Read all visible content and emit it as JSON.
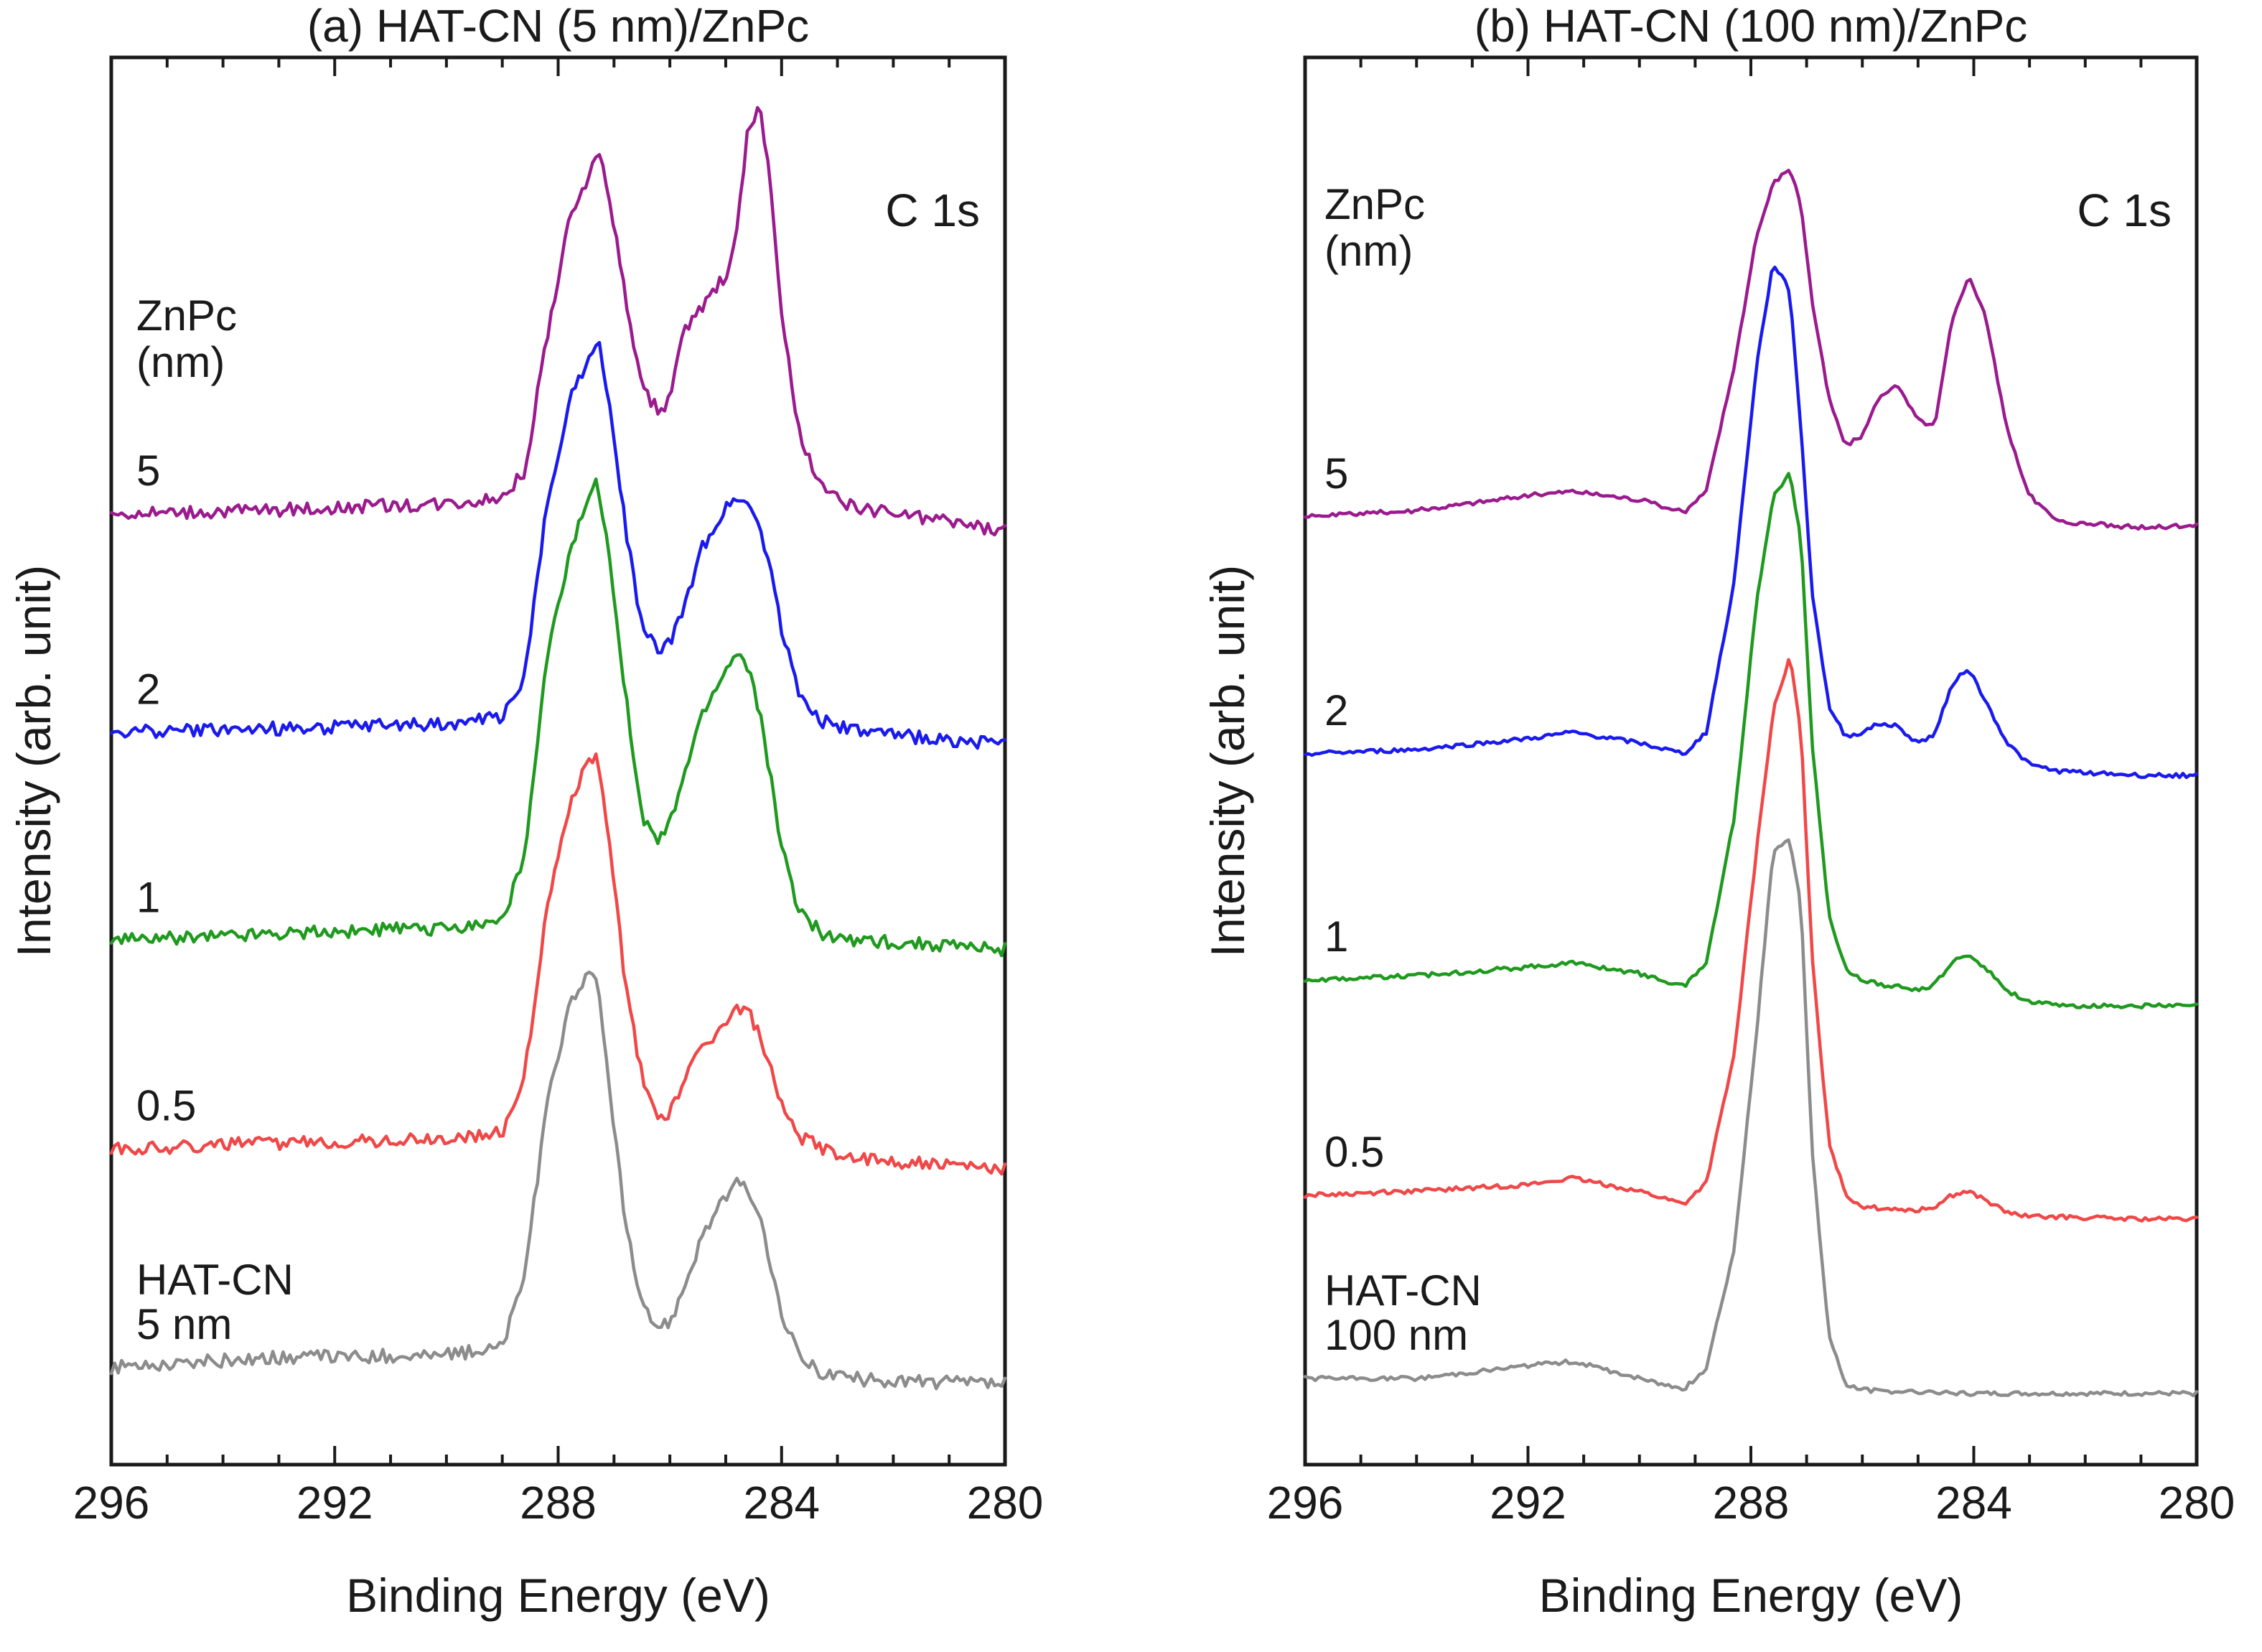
{
  "chart_data": [
    {
      "type": "line",
      "title": "(a) HAT-CN (5 nm)/ZnPc",
      "xlabel": "Binding Energy (eV)",
      "ylabel": "Intensity (arb. unit)",
      "xlim": [
        296,
        280
      ],
      "xticks": [
        296,
        292,
        288,
        284,
        280
      ],
      "xtick_labels": [
        "296",
        "292",
        "288",
        "284",
        "280"
      ],
      "y_ticks_shown": false,
      "corner_label": "C 1s",
      "legend_header": [
        "ZnPc",
        "(nm)"
      ],
      "series": [
        {
          "name": "5",
          "label_lines": [
            "5"
          ],
          "color": "#9b1b8e",
          "offset": 4.1,
          "x": [
            296,
            293,
            290,
            289,
            288.6,
            288.2,
            287.8,
            287.5,
            287.3,
            287.1,
            286.8,
            286.5,
            286.2,
            286.0,
            285.8,
            285.4,
            285.0,
            284.8,
            284.6,
            284.4,
            284.2,
            284.0,
            283.7,
            283.3,
            283.0,
            282.5,
            280
          ],
          "values": [
            0.0,
            0.02,
            0.05,
            0.08,
            0.2,
            0.85,
            1.4,
            1.6,
            1.75,
            1.55,
            1.05,
            0.6,
            0.5,
            0.55,
            0.85,
            1.0,
            1.15,
            1.35,
            1.85,
            1.95,
            1.6,
            0.95,
            0.4,
            0.12,
            0.07,
            0.02,
            -0.08
          ]
        },
        {
          "name": "2",
          "label_lines": [
            "2"
          ],
          "color": "#1a1aee",
          "offset": 3.05,
          "x": [
            296,
            293,
            290,
            289,
            288.6,
            288.2,
            287.8,
            287.5,
            287.3,
            287.1,
            286.8,
            286.5,
            286.2,
            286.0,
            285.8,
            285.4,
            285.0,
            284.8,
            284.6,
            284.4,
            284.2,
            284.0,
            283.7,
            283.3,
            283.0,
            282.5,
            280
          ],
          "values": [
            0.0,
            0.02,
            0.04,
            0.08,
            0.25,
            1.1,
            1.6,
            1.78,
            1.9,
            1.6,
            1.0,
            0.5,
            0.4,
            0.43,
            0.55,
            0.9,
            1.08,
            1.14,
            1.1,
            1.0,
            0.8,
            0.5,
            0.2,
            0.06,
            0.03,
            0.0,
            -0.06
          ]
        },
        {
          "name": "1",
          "label_lines": [
            "1"
          ],
          "color": "#1f9a1f",
          "offset": 2.05,
          "x": [
            296,
            293,
            290,
            289,
            288.6,
            288.2,
            287.8,
            287.5,
            287.3,
            287.1,
            286.8,
            286.5,
            286.2,
            286.0,
            285.8,
            285.4,
            285.0,
            284.8,
            284.6,
            284.4,
            284.2,
            284.0,
            283.7,
            283.3,
            283.0,
            282.5,
            280
          ],
          "values": [
            0.0,
            0.04,
            0.06,
            0.1,
            0.4,
            1.35,
            1.85,
            2.1,
            2.2,
            1.9,
            1.2,
            0.58,
            0.48,
            0.55,
            0.75,
            1.1,
            1.3,
            1.38,
            1.32,
            1.1,
            0.8,
            0.45,
            0.15,
            0.04,
            0.02,
            0.0,
            -0.04
          ]
        },
        {
          "name": "0.5",
          "label_lines": [
            "0.5"
          ],
          "color": "#f04848",
          "offset": 1.05,
          "x": [
            296,
            293,
            290,
            289,
            288.6,
            288.2,
            287.8,
            287.5,
            287.3,
            287.1,
            286.8,
            286.5,
            286.2,
            286.0,
            285.8,
            285.4,
            285.0,
            284.8,
            284.6,
            284.4,
            284.2,
            284.0,
            283.7,
            283.3,
            283.0,
            282.5,
            280
          ],
          "values": [
            0.0,
            0.03,
            0.05,
            0.08,
            0.35,
            1.15,
            1.65,
            1.85,
            1.88,
            1.5,
            0.8,
            0.35,
            0.15,
            0.18,
            0.3,
            0.5,
            0.6,
            0.68,
            0.66,
            0.55,
            0.38,
            0.2,
            0.06,
            0.01,
            -0.02,
            -0.05,
            -0.1
          ]
        },
        {
          "name": "HAT-CN 5 nm",
          "label_lines": [
            "HAT-CN",
            "5 nm"
          ],
          "color": "#8c8c8c",
          "offset": 0.0,
          "x": [
            296,
            293,
            290,
            289,
            288.6,
            288.2,
            287.8,
            287.5,
            287.3,
            287.1,
            286.8,
            286.5,
            286.2,
            286.0,
            285.8,
            285.4,
            285.0,
            284.8,
            284.6,
            284.4,
            284.2,
            284.0,
            283.7,
            283.3,
            283.0,
            282.5,
            280
          ],
          "values": [
            0.0,
            0.05,
            0.06,
            0.1,
            0.45,
            1.25,
            1.75,
            1.88,
            1.85,
            1.4,
            0.7,
            0.28,
            0.2,
            0.22,
            0.35,
            0.65,
            0.82,
            0.88,
            0.86,
            0.72,
            0.5,
            0.25,
            0.06,
            -0.02,
            -0.04,
            -0.06,
            -0.08
          ]
        }
      ]
    },
    {
      "type": "line",
      "title": "(b) HAT-CN (100 nm)/ZnPc",
      "xlabel": "Binding Energy (eV)",
      "ylabel": "Intensity (arb. unit)",
      "xlim": [
        296,
        280
      ],
      "xticks": [
        296,
        292,
        288,
        284,
        280
      ],
      "xtick_labels": [
        "296",
        "292",
        "288",
        "284",
        "280"
      ],
      "y_ticks_shown": false,
      "corner_label": "C 1s",
      "legend_header": [
        "ZnPc",
        "(nm)"
      ],
      "series": [
        {
          "name": "5",
          "label_lines": [
            "5"
          ],
          "color": "#9b1b8e",
          "offset": 4.0,
          "x": [
            296,
            294,
            292,
            291.2,
            290,
            289.2,
            288.8,
            288.3,
            287.9,
            287.6,
            287.3,
            287.1,
            286.9,
            286.6,
            286.3,
            286.0,
            285.7,
            285.4,
            285.0,
            284.7,
            284.4,
            284.1,
            283.8,
            283.4,
            283.0,
            282.5,
            281,
            280
          ],
          "values": [
            0.0,
            0.03,
            0.1,
            0.12,
            0.08,
            0.02,
            0.12,
            0.7,
            1.3,
            1.55,
            1.62,
            1.45,
            1.0,
            0.55,
            0.33,
            0.38,
            0.55,
            0.62,
            0.45,
            0.42,
            0.9,
            1.12,
            0.95,
            0.4,
            0.1,
            -0.02,
            -0.05,
            -0.04
          ]
        },
        {
          "name": "2",
          "label_lines": [
            "2"
          ],
          "color": "#1a1aee",
          "offset": 2.9,
          "x": [
            296,
            294,
            292,
            291.2,
            290,
            289.2,
            288.8,
            288.3,
            287.9,
            287.6,
            287.3,
            287.1,
            286.9,
            286.6,
            286.3,
            286.0,
            285.7,
            285.4,
            285.0,
            284.7,
            284.4,
            284.1,
            283.8,
            283.4,
            283.0,
            282.5,
            281,
            280
          ],
          "values": [
            0.0,
            0.02,
            0.07,
            0.1,
            0.05,
            0.0,
            0.1,
            0.8,
            1.8,
            2.28,
            2.15,
            1.5,
            0.75,
            0.22,
            0.08,
            0.1,
            0.14,
            0.13,
            0.05,
            0.09,
            0.32,
            0.4,
            0.25,
            0.05,
            -0.05,
            -0.08,
            -0.1,
            -0.1
          ]
        },
        {
          "name": "1",
          "label_lines": [
            "1"
          ],
          "color": "#1f9a1f",
          "offset": 1.85,
          "x": [
            296,
            294,
            292,
            291.2,
            290,
            289.2,
            288.8,
            288.3,
            287.9,
            287.6,
            287.3,
            287.1,
            286.9,
            286.6,
            286.3,
            286.0,
            285.7,
            285.4,
            285.0,
            284.7,
            284.4,
            284.1,
            283.8,
            283.4,
            283.0,
            282.5,
            281,
            280
          ],
          "values": [
            0.0,
            0.02,
            0.06,
            0.08,
            0.03,
            -0.03,
            0.08,
            0.75,
            1.75,
            2.25,
            2.35,
            2.05,
            1.1,
            0.3,
            0.05,
            0.0,
            -0.02,
            -0.03,
            -0.05,
            -0.02,
            0.08,
            0.12,
            0.06,
            -0.05,
            -0.1,
            -0.12,
            -0.12,
            -0.12
          ]
        },
        {
          "name": "0.5",
          "label_lines": [
            "0.5"
          ],
          "color": "#f04848",
          "offset": 0.85,
          "x": [
            296,
            294,
            292,
            291.2,
            290,
            289.2,
            288.8,
            288.3,
            287.9,
            287.6,
            287.3,
            287.1,
            286.9,
            286.6,
            286.3,
            286.0,
            285.7,
            285.4,
            285.0,
            284.7,
            284.4,
            284.1,
            283.8,
            283.4,
            283.0,
            282.5,
            281,
            280
          ],
          "values": [
            0.0,
            0.02,
            0.05,
            0.08,
            0.02,
            -0.04,
            0.06,
            0.65,
            1.6,
            2.25,
            2.5,
            2.15,
            1.1,
            0.25,
            0.0,
            -0.05,
            -0.06,
            -0.06,
            -0.07,
            -0.05,
            0.0,
            0.02,
            -0.02,
            -0.08,
            -0.1,
            -0.1,
            -0.11,
            -0.11
          ]
        },
        {
          "name": "HAT-CN 100 nm",
          "label_lines": [
            "HAT-CN",
            "100 nm"
          ],
          "color": "#8c8c8c",
          "offset": 0.0,
          "x": [
            296,
            294,
            292,
            291.2,
            290,
            289.2,
            288.8,
            288.3,
            287.9,
            287.6,
            287.3,
            287.1,
            286.9,
            286.6,
            286.3,
            286.0,
            285.7,
            285.4,
            285.0,
            284.7,
            284.4,
            284.1,
            283.8,
            283.4,
            283.0,
            282.5,
            281,
            280
          ],
          "values": [
            0.0,
            0.0,
            0.06,
            0.08,
            0.0,
            -0.05,
            0.05,
            0.6,
            1.6,
            2.45,
            2.5,
            2.2,
            1.05,
            0.2,
            -0.03,
            -0.05,
            -0.06,
            -0.06,
            -0.06,
            -0.06,
            -0.07,
            -0.07,
            -0.07,
            -0.07,
            -0.07,
            -0.07,
            -0.07,
            -0.07
          ]
        }
      ]
    }
  ]
}
